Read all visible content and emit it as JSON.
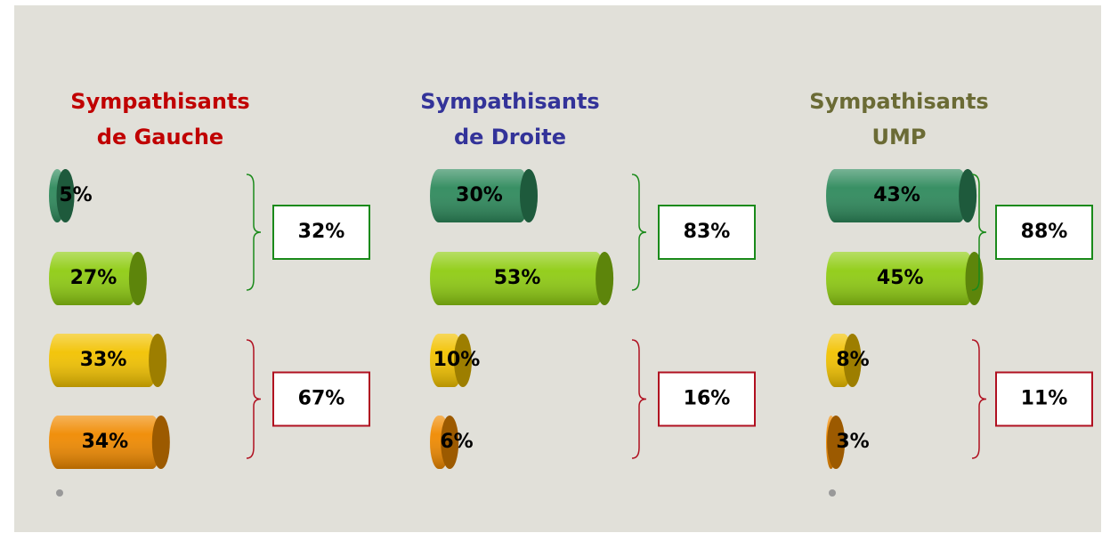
{
  "chart_data": [
    {
      "type": "bar",
      "title": "Sympathisants de Gauche",
      "title_color": "#c00000",
      "values": [
        5,
        27,
        33,
        34
      ],
      "value_labels": [
        "5%",
        "27%",
        "33%",
        "34%"
      ],
      "colors": [
        "#2e8a5c",
        "#8fcc12",
        "#f2c200",
        "#f08a00"
      ],
      "totals": [
        32,
        67
      ],
      "total_labels": [
        "32%",
        "67%"
      ],
      "total_colors": [
        "#1a8a1a",
        "#b01020"
      ]
    },
    {
      "type": "bar",
      "title": "Sympathisants de Droite",
      "title_color": "#333399",
      "values": [
        30,
        53,
        10,
        6
      ],
      "value_labels": [
        "30%",
        "53%",
        "10%",
        "6%"
      ],
      "colors": [
        "#2e8a5c",
        "#8fcc12",
        "#f2c200",
        "#f08a00"
      ],
      "totals": [
        83,
        16
      ],
      "total_labels": [
        "83%",
        "16%"
      ],
      "total_colors": [
        "#1a8a1a",
        "#b01020"
      ]
    },
    {
      "type": "bar",
      "title": "Sympathisants UMP",
      "title_color": "#6b6b35",
      "values": [
        43,
        45,
        8,
        3
      ],
      "value_labels": [
        "43%",
        "45%",
        "8%",
        "3%"
      ],
      "colors": [
        "#2e8a5c",
        "#8fcc12",
        "#f2c200",
        "#f08a00"
      ],
      "totals": [
        88,
        11
      ],
      "total_labels": [
        "88%",
        "11%"
      ],
      "total_colors": [
        "#1a8a1a",
        "#b01020"
      ]
    }
  ]
}
